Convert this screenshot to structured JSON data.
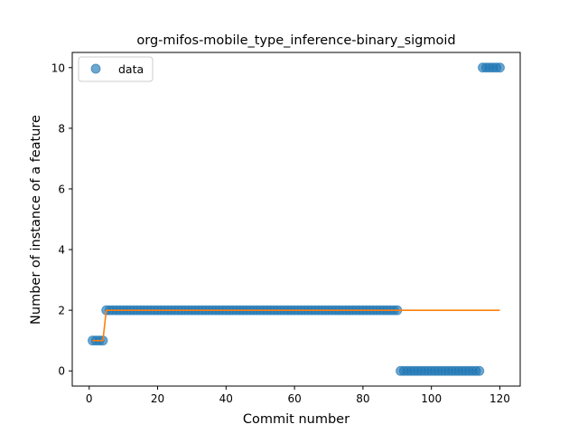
{
  "chart_data": {
    "type": "scatter",
    "title": "org-mifos-mobile_type_inference-binary_sigmoid",
    "xlabel": "Commit number",
    "ylabel": "Number of instance of a feature",
    "xlim": [
      -4.95,
      125.95
    ],
    "ylim": [
      -0.5,
      10.5
    ],
    "xticks": [
      0,
      20,
      40,
      60,
      80,
      100,
      120
    ],
    "yticks": [
      0,
      2,
      4,
      6,
      8,
      10
    ],
    "grid": false,
    "legend": {
      "position": "top-left",
      "entries": [
        "data"
      ]
    },
    "series": [
      {
        "name": "data",
        "kind": "scatter",
        "color": "#1f77b4",
        "points": [
          [
            1,
            1
          ],
          [
            2,
            1
          ],
          [
            3,
            1
          ],
          [
            4,
            1
          ],
          [
            5,
            2
          ],
          [
            6,
            2
          ],
          [
            7,
            2
          ],
          [
            8,
            2
          ],
          [
            9,
            2
          ],
          [
            10,
            2
          ],
          [
            11,
            2
          ],
          [
            12,
            2
          ],
          [
            13,
            2
          ],
          [
            14,
            2
          ],
          [
            15,
            2
          ],
          [
            16,
            2
          ],
          [
            17,
            2
          ],
          [
            18,
            2
          ],
          [
            19,
            2
          ],
          [
            20,
            2
          ],
          [
            21,
            2
          ],
          [
            22,
            2
          ],
          [
            23,
            2
          ],
          [
            24,
            2
          ],
          [
            25,
            2
          ],
          [
            26,
            2
          ],
          [
            27,
            2
          ],
          [
            28,
            2
          ],
          [
            29,
            2
          ],
          [
            30,
            2
          ],
          [
            31,
            2
          ],
          [
            32,
            2
          ],
          [
            33,
            2
          ],
          [
            34,
            2
          ],
          [
            35,
            2
          ],
          [
            36,
            2
          ],
          [
            37,
            2
          ],
          [
            38,
            2
          ],
          [
            39,
            2
          ],
          [
            40,
            2
          ],
          [
            41,
            2
          ],
          [
            42,
            2
          ],
          [
            43,
            2
          ],
          [
            44,
            2
          ],
          [
            45,
            2
          ],
          [
            46,
            2
          ],
          [
            47,
            2
          ],
          [
            48,
            2
          ],
          [
            49,
            2
          ],
          [
            50,
            2
          ],
          [
            51,
            2
          ],
          [
            52,
            2
          ],
          [
            53,
            2
          ],
          [
            54,
            2
          ],
          [
            55,
            2
          ],
          [
            56,
            2
          ],
          [
            57,
            2
          ],
          [
            58,
            2
          ],
          [
            59,
            2
          ],
          [
            60,
            2
          ],
          [
            61,
            2
          ],
          [
            62,
            2
          ],
          [
            63,
            2
          ],
          [
            64,
            2
          ],
          [
            65,
            2
          ],
          [
            66,
            2
          ],
          [
            67,
            2
          ],
          [
            68,
            2
          ],
          [
            69,
            2
          ],
          [
            70,
            2
          ],
          [
            71,
            2
          ],
          [
            72,
            2
          ],
          [
            73,
            2
          ],
          [
            74,
            2
          ],
          [
            75,
            2
          ],
          [
            76,
            2
          ],
          [
            77,
            2
          ],
          [
            78,
            2
          ],
          [
            79,
            2
          ],
          [
            80,
            2
          ],
          [
            81,
            2
          ],
          [
            82,
            2
          ],
          [
            83,
            2
          ],
          [
            84,
            2
          ],
          [
            85,
            2
          ],
          [
            86,
            2
          ],
          [
            87,
            2
          ],
          [
            88,
            2
          ],
          [
            89,
            2
          ],
          [
            90,
            2
          ],
          [
            91,
            0
          ],
          [
            92,
            0
          ],
          [
            93,
            0
          ],
          [
            94,
            0
          ],
          [
            95,
            0
          ],
          [
            96,
            0
          ],
          [
            97,
            0
          ],
          [
            98,
            0
          ],
          [
            99,
            0
          ],
          [
            100,
            0
          ],
          [
            101,
            0
          ],
          [
            102,
            0
          ],
          [
            103,
            0
          ],
          [
            104,
            0
          ],
          [
            105,
            0
          ],
          [
            106,
            0
          ],
          [
            107,
            0
          ],
          [
            108,
            0
          ],
          [
            109,
            0
          ],
          [
            110,
            0
          ],
          [
            111,
            0
          ],
          [
            112,
            0
          ],
          [
            113,
            0
          ],
          [
            114,
            0
          ],
          [
            115,
            10
          ],
          [
            116,
            10
          ],
          [
            117,
            10
          ],
          [
            118,
            10
          ],
          [
            119,
            10
          ],
          [
            120,
            10
          ]
        ]
      },
      {
        "kind": "line",
        "color": "#ff7f0e",
        "points": [
          [
            1,
            1
          ],
          [
            4,
            1
          ],
          [
            5,
            2
          ],
          [
            120,
            2
          ]
        ]
      }
    ]
  }
}
